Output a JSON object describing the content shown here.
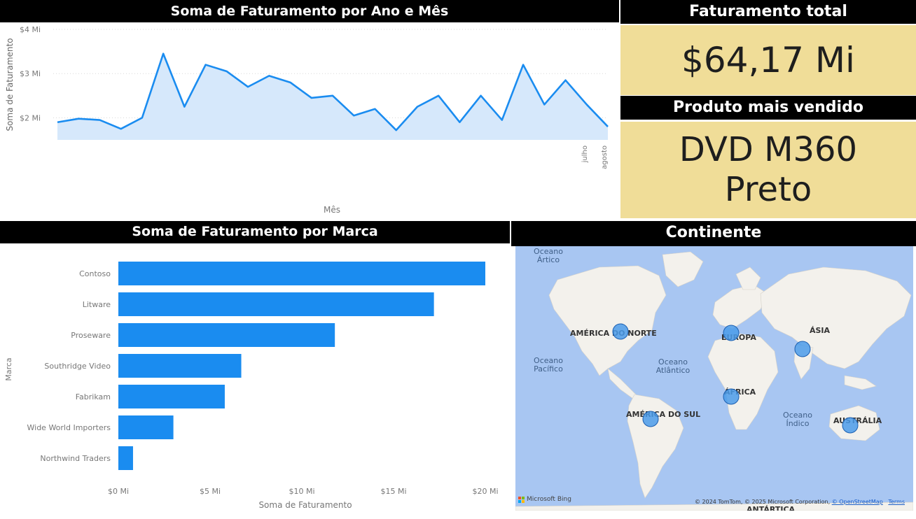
{
  "line_panel": {
    "title": "Soma de Faturamento por Ano e Mês"
  },
  "kpi_total": {
    "title": "Faturamento total",
    "value": "$64,17 Mi"
  },
  "kpi_product": {
    "title": "Produto mais vendido",
    "value_line1": "DVD M360",
    "value_line2": "Preto"
  },
  "bar_panel": {
    "title": "Soma de Faturamento por Marca"
  },
  "map_panel": {
    "title": "Continente",
    "oceans": [
      "Oceano Ártico",
      "Oceano Pacífico",
      "Oceano Atlântico",
      "Oceano Índico"
    ],
    "continents": [
      "AMÉRICA DO NORTE",
      "EUROPA",
      "ÁSIA",
      "ÁFRICA",
      "AMÉRICA DO SUL",
      "AUSTRÁLIA",
      "ANTÁRTICA"
    ],
    "attribution": "© 2024 TomTom, © 2025 Microsoft Corporation,",
    "osm_link": "© OpenStreetMap",
    "terms_link": "Terms",
    "bing_logo": "Microsoft Bing",
    "colors": {
      "water": "#a8c6f2",
      "land": "#f3f1ec",
      "bubble": "#4a9bea"
    }
  },
  "chart_data": [
    {
      "type": "area",
      "title": "Soma de Faturamento por Ano e Mês",
      "xlabel": "Mês",
      "ylabel": "Soma de Faturamento",
      "yticks": [
        "$2 Mi",
        "$3 Mi",
        "$4 Mi"
      ],
      "ylim": [
        1.5,
        4.0
      ],
      "x_tick_labels": [
        "julho",
        "agosto"
      ],
      "values": [
        1.9,
        1.98,
        1.95,
        1.75,
        2.0,
        3.45,
        2.25,
        3.2,
        3.05,
        2.7,
        2.95,
        2.8,
        2.45,
        2.5,
        2.05,
        2.2,
        1.72,
        2.25,
        2.5,
        1.9,
        2.5,
        1.95,
        3.2,
        2.3,
        2.85,
        2.3,
        1.8
      ],
      "grid": true,
      "color": "#1a8cf0"
    },
    {
      "type": "bar",
      "orientation": "horizontal",
      "title": "Soma de Faturamento por Marca",
      "xlabel": "Soma de Faturamento",
      "ylabel": "Marca",
      "categories": [
        "Contoso",
        "Litware",
        "Proseware",
        "Southridge Video",
        "Fabrikam",
        "Wide World Importers",
        "Northwind Traders"
      ],
      "values": [
        20,
        17.2,
        11.8,
        6.7,
        5.8,
        3.0,
        0.8
      ],
      "xticks": [
        "$0 Mi",
        "$5 Mi",
        "$10 Mi",
        "$15 Mi",
        "$20 Mi"
      ],
      "xlim": [
        0,
        20
      ],
      "color": "#1a8cf0"
    },
    {
      "type": "map",
      "title": "Continente",
      "points": [
        "AMÉRICA DO NORTE",
        "EUROPA",
        "ÁSIA",
        "ÁFRICA",
        "AMÉRICA DO SUL",
        "AUSTRÁLIA"
      ]
    }
  ]
}
